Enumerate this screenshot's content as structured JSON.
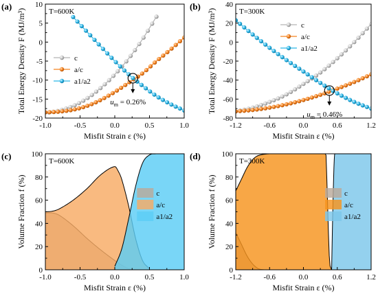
{
  "chart_data": [
    {
      "panel": "(a)",
      "type": "line",
      "temperature_label": "T=600K",
      "xlabel": "Misfit Strain ε (%)",
      "ylabel": "Total Energy Density F (MJ/m³)",
      "xlim": [
        -1.0,
        1.0
      ],
      "ylim": [
        -20,
        10
      ],
      "xticks": [
        "-1.0",
        "-0.5",
        "0.0",
        "0.5",
        "1.0"
      ],
      "yticks": [
        "-20",
        "-15",
        "-10",
        "-5",
        "0",
        "5",
        "10"
      ],
      "legend_position": "left",
      "series": [
        {
          "name": "c",
          "color": "#b3b3b3",
          "x": [
            -0.95,
            -0.8,
            -0.6,
            -0.4,
            -0.2,
            0.0,
            0.2,
            0.4,
            0.6
          ],
          "y": [
            -18.5,
            -18.0,
            -16.8,
            -14.8,
            -12.0,
            -8.5,
            -4.3,
            0.8,
            6.7
          ]
        },
        {
          "name": "a/c",
          "color": "#f5821f",
          "x": [
            -1.0,
            -0.8,
            -0.6,
            -0.4,
            -0.2,
            0.0,
            0.2,
            0.4,
            0.6,
            0.8,
            1.0
          ],
          "y": [
            -18.5,
            -18.3,
            -17.8,
            -16.8,
            -15.2,
            -13.1,
            -10.7,
            -8.2,
            -5.0,
            -2.0,
            1.2
          ]
        },
        {
          "name": "a1/a2",
          "color": "#29b6e8",
          "x": [
            -0.6,
            -0.4,
            -0.2,
            0.0,
            0.2,
            0.4,
            0.6,
            0.8,
            1.0
          ],
          "y": [
            6.6,
            2.7,
            -1.2,
            -5.0,
            -8.5,
            -11.5,
            -14.2,
            -16.3,
            -18.0
          ]
        }
      ],
      "crossing": {
        "x": 0.26,
        "y": -9.5
      },
      "annotation": {
        "symbol": "u",
        "sub": "m",
        "value": " = 0.26%"
      }
    },
    {
      "panel": "(b)",
      "type": "line",
      "temperature_label": "T=300K",
      "xlabel": "Misfit Strain ε (%)",
      "ylabel": "Total Energy Density F (MJ/m³)",
      "xlim": [
        -1.2,
        1.2
      ],
      "ylim": [
        -80,
        40
      ],
      "xticks": [
        "-1.2",
        "-0.6",
        "0.0",
        "0.6",
        "1.2"
      ],
      "yticks": [
        "-80",
        "-60",
        "-40",
        "-20",
        "0",
        "20",
        "40"
      ],
      "legend_position": "top-right",
      "series": [
        {
          "name": "c",
          "color": "#b3b3b3",
          "x": [
            -1.2,
            -0.9,
            -0.6,
            -0.3,
            0.0,
            0.3,
            0.6,
            0.9,
            1.2
          ],
          "y": [
            -73,
            -69,
            -63,
            -55,
            -44,
            -32,
            -17,
            0,
            19
          ]
        },
        {
          "name": "a/c",
          "color": "#f5821f",
          "x": [
            -1.2,
            -0.9,
            -0.6,
            -0.3,
            0.0,
            0.3,
            0.6,
            0.9,
            1.2
          ],
          "y": [
            -73,
            -71.5,
            -69,
            -65.5,
            -61,
            -55.5,
            -49,
            -42,
            -34
          ]
        },
        {
          "name": "a1/a2",
          "color": "#29b6e8",
          "x": [
            -1.2,
            -0.9,
            -0.6,
            -0.3,
            0.0,
            0.3,
            0.6,
            0.9,
            1.2
          ],
          "y": [
            23,
            8,
            -6,
            -19,
            -31,
            -43,
            -54,
            -63,
            -70
          ]
        }
      ],
      "crossing": {
        "x": 0.46,
        "y": -51
      },
      "annotation": {
        "symbol": "u",
        "sub": "m",
        "value": " = 0.46%"
      }
    },
    {
      "panel": "(c)",
      "type": "area",
      "temperature_label": "T=600K",
      "xlabel": "Misfit Strain ε (%)",
      "ylabel": "Volume Fraction f (%)",
      "xlim": [
        -1.0,
        1.0
      ],
      "ylim": [
        0,
        100
      ],
      "xticks": [
        "-1.0",
        "-0.5",
        "0.0",
        "0.5",
        "1.0"
      ],
      "yticks": [
        "0",
        "20",
        "40",
        "60",
        "80",
        "100"
      ],
      "legend_position": "right",
      "series": [
        {
          "name": "c",
          "color": "#b9a99b",
          "x": [
            -1.0,
            -0.9,
            -0.8,
            -0.6,
            -0.4,
            -0.2,
            0.0,
            0.1,
            0.2,
            0.3,
            0.4,
            0.5
          ],
          "y": [
            49,
            49,
            47,
            38,
            27,
            17,
            8,
            4,
            1,
            0.3,
            0,
            0
          ]
        },
        {
          "name": "a/c",
          "color": "#f8ab64",
          "x": [
            -1.0,
            -0.9,
            -0.8,
            -0.6,
            -0.4,
            -0.2,
            0.0,
            0.05,
            0.1,
            0.2,
            0.3,
            0.4,
            0.5
          ],
          "y": [
            50,
            50.5,
            52.5,
            60,
            70,
            82,
            89,
            85,
            78,
            55,
            27,
            8,
            1
          ]
        },
        {
          "name": "a1/a2",
          "color": "#5ccdf5",
          "x": [
            0.0,
            0.1,
            0.2,
            0.3,
            0.4,
            0.5,
            0.6,
            0.7,
            0.8,
            1.0
          ],
          "y": [
            3,
            18,
            44,
            72,
            92,
            99,
            100,
            100,
            100,
            100
          ]
        }
      ]
    },
    {
      "panel": "(d)",
      "type": "area",
      "temperature_label": "T=300K",
      "xlabel": "Misfit Strain ε (%)",
      "ylabel": "Volume Fraction f (%)",
      "xlim": [
        -1.2,
        1.2
      ],
      "ylim": [
        0,
        100
      ],
      "xticks": [
        "-1.2",
        "-0.6",
        "0.0",
        "0.6",
        "1.2"
      ],
      "yticks": [
        "0",
        "20",
        "40",
        "60",
        "80",
        "100"
      ],
      "legend_position": "right",
      "series": [
        {
          "name": "c",
          "color": "#b9a99b",
          "x": [
            -1.2,
            -1.1,
            -1.0,
            -0.9,
            -0.8,
            -0.7
          ],
          "y": [
            32,
            22,
            12,
            5,
            1,
            0
          ]
        },
        {
          "name": "a/c",
          "color": "#f7941d",
          "x": [
            -1.2,
            -1.1,
            -1.0,
            -0.9,
            -0.8,
            -0.6,
            -0.3,
            0.0,
            0.3,
            0.4,
            0.42,
            0.46,
            0.5
          ],
          "y": [
            68,
            78,
            88,
            95,
            98.5,
            100,
            100,
            100,
            100,
            99,
            70,
            10,
            0
          ]
        },
        {
          "name": "a1/a2",
          "color": "#7cc7ea",
          "x": [
            0.5,
            0.52,
            0.55,
            0.6,
            0.8,
            1.0,
            1.2
          ],
          "y": [
            0,
            50,
            98,
            100,
            100,
            100,
            100
          ]
        }
      ]
    }
  ]
}
